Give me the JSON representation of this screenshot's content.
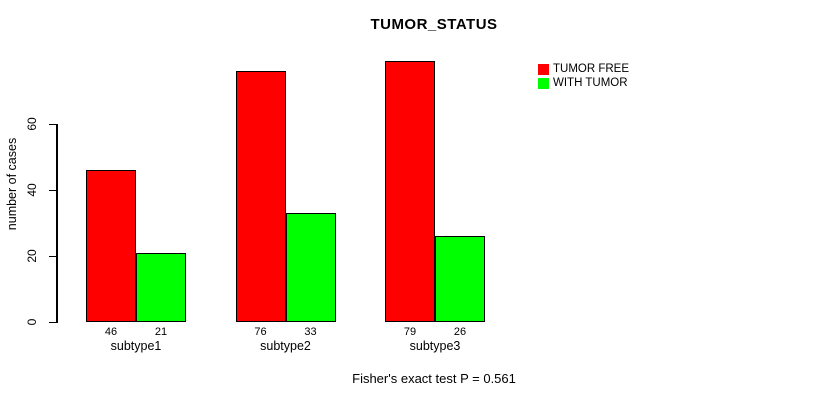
{
  "chart_data": {
    "type": "bar",
    "title": "TUMOR_STATUS",
    "ylabel": "number of cases",
    "xlabel": "",
    "categories": [
      "subtype1",
      "subtype2",
      "subtype3"
    ],
    "series": [
      {
        "name": "TUMOR FREE",
        "color": "#ff0000",
        "values": [
          46,
          76,
          79
        ]
      },
      {
        "name": "WITH TUMOR",
        "color": "#00ff00",
        "values": [
          21,
          33,
          26
        ]
      }
    ],
    "yticks": [
      0,
      20,
      40,
      60
    ],
    "ylim": [
      0,
      80
    ],
    "grid": false,
    "legend_position": "top-right",
    "bar_value_labels": [
      [
        46,
        76,
        79
      ],
      [
        21,
        33,
        26
      ]
    ],
    "annotation": "Fisher's exact test P = 0.561",
    "axis_color": "#000000",
    "background_color": "#ffffff"
  }
}
